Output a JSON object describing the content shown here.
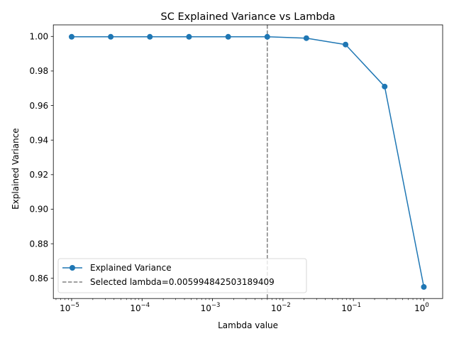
{
  "chart_data": {
    "type": "line",
    "title": "SC Explained Variance vs Lambda",
    "xlabel": "Lambda value",
    "ylabel": "Explained Variance",
    "x_scale": "log",
    "xlim": [
      5.5e-06,
      1.85
    ],
    "ylim": [
      0.8483,
      1.0067
    ],
    "x_ticks": [
      {
        "value": 1e-05,
        "base": "10",
        "exp": "−5"
      },
      {
        "value": 0.0001,
        "base": "10",
        "exp": "−4"
      },
      {
        "value": 0.001,
        "base": "10",
        "exp": "−3"
      },
      {
        "value": 0.01,
        "base": "10",
        "exp": "−2"
      },
      {
        "value": 0.1,
        "base": "10",
        "exp": "−1"
      },
      {
        "value": 1,
        "base": "10",
        "exp": "0"
      }
    ],
    "y_ticks": [
      {
        "value": 0.86,
        "label": "0.86"
      },
      {
        "value": 0.88,
        "label": "0.88"
      },
      {
        "value": 0.9,
        "label": "0.90"
      },
      {
        "value": 0.92,
        "label": "0.92"
      },
      {
        "value": 0.94,
        "label": "0.94"
      },
      {
        "value": 0.96,
        "label": "0.96"
      },
      {
        "value": 0.98,
        "label": "0.98"
      },
      {
        "value": 1.0,
        "label": "1.00"
      }
    ],
    "series": [
      {
        "name": "Explained Variance",
        "color": "#1f77b4",
        "marker": "circle",
        "x": [
          1e-05,
          3.59e-05,
          0.000129,
          0.000464,
          0.00167,
          0.00599,
          0.0215,
          0.0774,
          0.278,
          1.0
        ],
        "y": [
          0.9998,
          0.9998,
          0.9998,
          0.9998,
          0.9998,
          0.9998,
          0.999,
          0.9953,
          0.971,
          0.855
        ]
      }
    ],
    "vline": {
      "name": "Selected lambda=0.005994842503189409",
      "x": 0.005994842503189409,
      "color": "#808080",
      "style": "dashed"
    },
    "legend": {
      "placement": "lower-left",
      "entries": [
        {
          "label": "Explained Variance",
          "color": "#1f77b4",
          "kind": "line-marker"
        },
        {
          "label": "Selected lambda=0.005994842503189409",
          "color": "#808080",
          "kind": "dashed"
        }
      ]
    },
    "grid": false
  }
}
